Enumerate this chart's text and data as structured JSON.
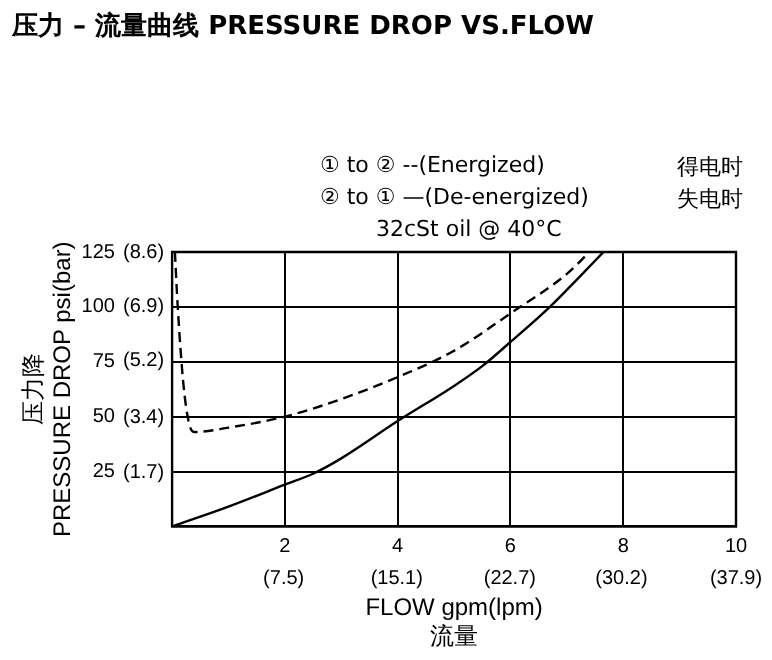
{
  "chart_data": {
    "type": "line",
    "title": "压力 – 流量曲线 PRESSURE DROP VS.FLOW",
    "xlabel": "FLOW gpm(lpm)\n流量",
    "ylabel": "压力降\nPRESSURE DROP psi(bar)",
    "annotations": [
      "① to ② --(Energized)",
      "得电时",
      "② to ① —(De-energized)",
      "失电时",
      "32cSt oil @ 40°C"
    ],
    "series": [
      {
        "color": "#000000",
        "line_style": "dashed",
        "x": [
          0.05,
          0.1,
          0.2,
          0.3,
          0.4,
          1,
          2,
          3,
          4,
          5,
          6,
          7,
          7.4
        ],
        "values": [
          125,
          100,
          65,
          47,
          43,
          45,
          50,
          58,
          68,
          80,
          97,
          115,
          125
        ]
      },
      {
        "color": "#000000",
        "line_style": "solid",
        "x": [
          0,
          1,
          2,
          2.5,
          3,
          4,
          5,
          5.5,
          6,
          6.7,
          7.2,
          7.65
        ],
        "values": [
          0,
          9,
          19,
          24,
          31,
          48,
          64,
          73,
          84,
          100,
          113,
          125
        ]
      }
    ],
    "xlim": [
      0,
      10
    ],
    "ylim": [
      0,
      125
    ],
    "xticks": [
      {
        "value": 0,
        "label": null
      },
      2,
      4,
      6,
      8,
      10
    ],
    "yticks": [
      {
        "value": 0,
        "label": null
      },
      25,
      50,
      75,
      100,
      125
    ],
    "x2lim": [
      0,
      37.9
    ],
    "x2ticks": [
      {
        "value": 7.5,
        "label": "(7.5)"
      },
      {
        "value": 15.1,
        "label": "(15.1)"
      },
      {
        "value": 22.7,
        "label": "(22.7)"
      },
      {
        "value": 30.2,
        "label": "(30.2)"
      },
      {
        "value": 37.9,
        "label": "(37.9)"
      }
    ],
    "y2lim": [
      0,
      8.6
    ],
    "y2ticks": [
      {
        "value": 1.7,
        "label": "(1.7)"
      },
      {
        "value": 3.4,
        "label": "(3.4)"
      },
      {
        "value": 5.2,
        "label": "(5.2)"
      },
      {
        "value": 6.9,
        "label": "(6.9)"
      },
      {
        "value": 8.6,
        "label": "(8.6)"
      }
    ],
    "grid": true,
    "legend": false,
    "marker": "none"
  }
}
